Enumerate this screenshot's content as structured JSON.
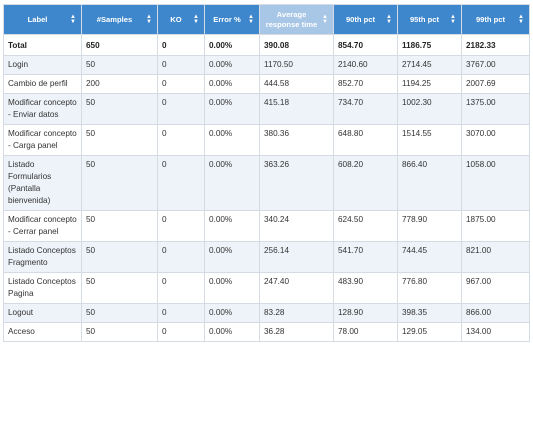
{
  "table": {
    "headers": [
      {
        "label": "Label",
        "sorted": false
      },
      {
        "label": "#Samples",
        "sorted": false
      },
      {
        "label": "KO",
        "sorted": false
      },
      {
        "label": "Error %",
        "sorted": false
      },
      {
        "label": "Average response time",
        "sorted": true
      },
      {
        "label": "90th pct",
        "sorted": false
      },
      {
        "label": "95th pct",
        "sorted": false
      },
      {
        "label": "99th pct",
        "sorted": false
      }
    ],
    "total": [
      "Total",
      "650",
      "0",
      "0.00%",
      "390.08",
      "854.70",
      "1186.75",
      "2182.33"
    ],
    "rows": [
      [
        "Login",
        "50",
        "0",
        "0.00%",
        "1170.50",
        "2140.60",
        "2714.45",
        "3767.00"
      ],
      [
        "Cambio de perfil",
        "200",
        "0",
        "0.00%",
        "444.58",
        "852.70",
        "1194.25",
        "2007.69"
      ],
      [
        "Modificar concepto - Enviar datos",
        "50",
        "0",
        "0.00%",
        "415.18",
        "734.70",
        "1002.30",
        "1375.00"
      ],
      [
        "Modificar concepto - Carga panel",
        "50",
        "0",
        "0.00%",
        "380.36",
        "648.80",
        "1514.55",
        "3070.00"
      ],
      [
        "Listado Formularios (Pantalla bienvenida)",
        "50",
        "0",
        "0.00%",
        "363.26",
        "608.20",
        "866.40",
        "1058.00"
      ],
      [
        "Modificar concepto - Cerrar panel",
        "50",
        "0",
        "0.00%",
        "340.24",
        "624.50",
        "778.90",
        "1875.00"
      ],
      [
        "Listado Conceptos Fragmento",
        "50",
        "0",
        "0.00%",
        "256.14",
        "541.70",
        "744.45",
        "821.00"
      ],
      [
        "Listado Conceptos Pagina",
        "50",
        "0",
        "0.00%",
        "247.40",
        "483.90",
        "776.80",
        "967.00"
      ],
      [
        "Logout",
        "50",
        "0",
        "0.00%",
        "83.28",
        "128.90",
        "398.35",
        "866.00"
      ],
      [
        "Acceso",
        "50",
        "0",
        "0.00%",
        "36.28",
        "78.00",
        "129.05",
        "134.00"
      ]
    ]
  },
  "colors": {
    "header": "#3f87cc",
    "header_sorted": "#a8c6e6",
    "row_alt": "#eef3f9"
  }
}
